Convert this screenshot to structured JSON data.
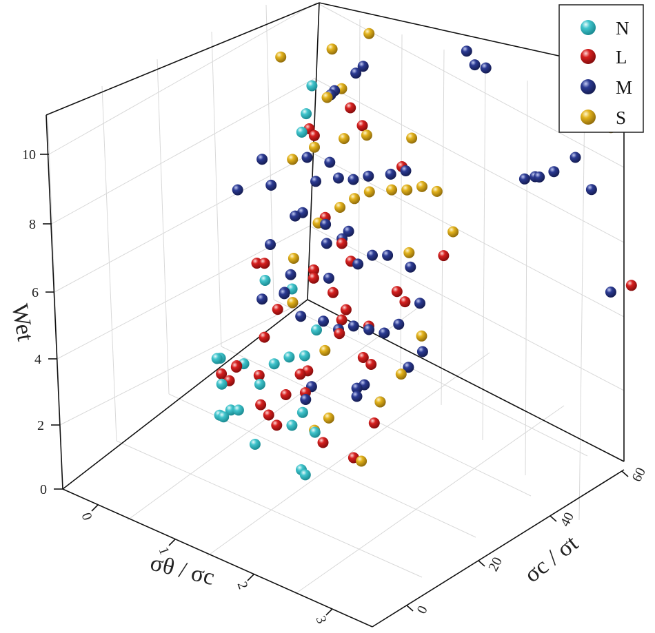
{
  "chart_data": {
    "type": "scatter3d",
    "title": "",
    "xlabel": "σθ / σc",
    "ylabel": "σc / σt",
    "zlabel": "Wet",
    "xlim": [
      -0.5,
      3.5
    ],
    "ylim": [
      -10,
      60
    ],
    "zlim": [
      0,
      11
    ],
    "xticks": [
      "0",
      "1",
      "2",
      "3"
    ],
    "yticks": [
      "0",
      "20",
      "40",
      "60"
    ],
    "zticks": [
      "0",
      "2",
      "4",
      "6",
      "8",
      "10"
    ],
    "xtick_values": [
      0,
      1,
      2,
      3
    ],
    "ytick_values": [
      0,
      20,
      40,
      60
    ],
    "ztick_values": [
      0,
      2,
      4,
      6,
      8,
      10
    ],
    "legend": [
      "N",
      "L",
      "M",
      "S"
    ],
    "legend_position": "top-right",
    "series": [
      {
        "name": "N",
        "color": "#40c4cc",
        "points": [
          [
            0.75,
            8,
            2
          ],
          [
            0.8,
            8,
            2
          ],
          [
            0.9,
            8,
            2.3
          ],
          [
            1.0,
            8,
            2.4
          ],
          [
            1.2,
            8,
            1.6
          ],
          [
            1.7,
            10,
            1.2
          ],
          [
            1.75,
            10,
            1.1
          ],
          [
            0.7,
            10,
            2.7
          ],
          [
            0.6,
            12,
            3.2
          ],
          [
            0.65,
            10,
            3.4
          ],
          [
            1.0,
            10,
            3.6
          ],
          [
            1.2,
            10,
            3.2
          ],
          [
            1.6,
            10,
            2.4
          ],
          [
            1.7,
            11,
            2.8
          ],
          [
            1.4,
            10,
            4.0
          ],
          [
            1.6,
            10,
            4.4
          ],
          [
            1.9,
            8,
            4.9
          ],
          [
            0.85,
            20,
            5.1
          ],
          [
            1.2,
            20,
            5.2
          ],
          [
            0.7,
            35,
            8.1
          ],
          [
            1.1,
            28,
            9.6
          ],
          [
            1.0,
            32,
            10.0
          ],
          [
            1.5,
            20,
            4.3
          ],
          [
            1.9,
            10,
            2.5
          ]
        ]
      },
      {
        "name": "L",
        "color": "#d6201f",
        "points": [
          [
            0.7,
            10,
            3.0
          ],
          [
            0.8,
            10,
            2.9
          ],
          [
            0.9,
            10,
            3.4
          ],
          [
            1.0,
            8,
            3.7
          ],
          [
            1.1,
            12,
            3.2
          ],
          [
            1.2,
            10,
            2.6
          ],
          [
            1.3,
            10,
            2.4
          ],
          [
            1.3,
            15,
            2.6
          ],
          [
            1.4,
            10,
            2.2
          ],
          [
            1.5,
            15,
            3.4
          ],
          [
            1.6,
            15,
            3.6
          ],
          [
            1.7,
            12,
            3.3
          ],
          [
            2.0,
            10,
            2.3
          ],
          [
            2.3,
            12,
            2.0
          ],
          [
            2.4,
            16,
            2.8
          ],
          [
            1.0,
            20,
            4.4
          ],
          [
            1.2,
            20,
            4.8
          ],
          [
            1.3,
            24,
            5.3
          ],
          [
            1.5,
            25,
            5.0
          ],
          [
            1.6,
            25,
            4.3
          ],
          [
            1.8,
            20,
            4.5
          ],
          [
            2.0,
            24,
            4.6
          ],
          [
            2.1,
            20,
            4.1
          ],
          [
            2.2,
            20,
            4.0
          ],
          [
            0.75,
            20,
            5.5
          ],
          [
            0.85,
            20,
            5.6
          ],
          [
            1.2,
            30,
            6.5
          ],
          [
            1.5,
            28,
            6.2
          ],
          [
            1.8,
            24,
            6.3
          ],
          [
            2.3,
            28,
            5.3
          ],
          [
            2.5,
            35,
            6.3
          ],
          [
            0.8,
            35,
            8.3
          ],
          [
            1.1,
            30,
            8.8
          ],
          [
            1.4,
            34,
            9.6
          ],
          [
            1.5,
            35,
            9.1
          ],
          [
            2.0,
            35,
            8.4
          ],
          [
            1.9,
            20,
            5.3
          ],
          [
            1.0,
            16,
            3.9
          ],
          [
            2.2,
            28,
            5.5
          ],
          [
            1.4,
            22,
            5.8
          ],
          [
            3.2,
            72,
            3.2
          ]
        ]
      },
      {
        "name": "M",
        "color": "#2b3a92",
        "points": [
          [
            0.8,
            20,
            4.5
          ],
          [
            1.0,
            22,
            4.7
          ],
          [
            1.1,
            20,
            5.0
          ],
          [
            1.3,
            20,
            4.5
          ],
          [
            1.5,
            22,
            4.4
          ],
          [
            1.6,
            24,
            4.1
          ],
          [
            1.8,
            24,
            4.4
          ],
          [
            2.0,
            24,
            4.5
          ],
          [
            2.2,
            24,
            4.6
          ],
          [
            2.3,
            26,
            4.8
          ],
          [
            0.7,
            25,
            5.6
          ],
          [
            0.9,
            28,
            6.4
          ],
          [
            1.0,
            28,
            6.6
          ],
          [
            1.2,
            30,
            6.3
          ],
          [
            1.3,
            28,
            6.0
          ],
          [
            1.5,
            30,
            6.4
          ],
          [
            1.7,
            28,
            5.8
          ],
          [
            1.8,
            30,
            6.0
          ],
          [
            2.0,
            30,
            6.2
          ],
          [
            0.6,
            28,
            7.0
          ],
          [
            0.9,
            32,
            7.8
          ],
          [
            1.0,
            32,
            7.2
          ],
          [
            1.1,
            34,
            7.7
          ],
          [
            1.3,
            32,
            7.6
          ],
          [
            1.4,
            34,
            7.5
          ],
          [
            1.6,
            34,
            7.8
          ],
          [
            1.8,
            36,
            7.9
          ],
          [
            2.0,
            36,
            8.2
          ],
          [
            0.4,
            30,
            7.4
          ],
          [
            0.3,
            25,
            6.8
          ],
          [
            1.1,
            35,
            9.6
          ],
          [
            1.2,
            34,
            9.9
          ],
          [
            1.4,
            38,
            10.5
          ],
          [
            1.3,
            38,
            10.2
          ],
          [
            2.0,
            20,
            3.1
          ],
          [
            2.1,
            20,
            3.3
          ],
          [
            2.3,
            20,
            3.0
          ],
          [
            1.5,
            18,
            2.8
          ],
          [
            1.9,
            22,
            2.6
          ],
          [
            2.5,
            24,
            3.9
          ],
          [
            2.6,
            26,
            4.3
          ],
          [
            1.7,
            12,
            3.1
          ],
          [
            2.4,
            30,
            5.2
          ],
          [
            2.2,
            32,
            5.9
          ],
          [
            2.8,
            52,
            7.5
          ],
          [
            2.9,
            54,
            7.5
          ],
          [
            3.0,
            56,
            7.6
          ],
          [
            2.75,
            56,
            7.2
          ],
          [
            3.1,
            60,
            7.8
          ],
          [
            3.2,
            62,
            6.8
          ],
          [
            2.2,
            50,
            10.8
          ],
          [
            2.3,
            50,
            10.5
          ],
          [
            2.35,
            52,
            10.3
          ],
          [
            2.9,
            68,
            10.5
          ],
          [
            3.0,
            70,
            10.8
          ],
          [
            3.0,
            70,
            10.4
          ],
          [
            3.4,
            62,
            4.0
          ],
          [
            1.5,
            24,
            5.5
          ],
          [
            1.0,
            24,
            5.1
          ],
          [
            1.6,
            26,
            6.6
          ]
        ]
      },
      {
        "name": "S",
        "color": "#e2b21c",
        "points": [
          [
            2.4,
            12,
            2.0
          ],
          [
            1.9,
            14,
            2.6
          ],
          [
            1.8,
            12,
            2.3
          ],
          [
            2.3,
            20,
            3.0
          ],
          [
            2.4,
            24,
            3.6
          ],
          [
            2.5,
            28,
            4.5
          ],
          [
            1.0,
            25,
            5.5
          ],
          [
            1.2,
            28,
            6.5
          ],
          [
            1.4,
            30,
            7.0
          ],
          [
            1.5,
            32,
            7.2
          ],
          [
            1.7,
            32,
            7.6
          ],
          [
            1.9,
            34,
            7.7
          ],
          [
            2.1,
            34,
            7.9
          ],
          [
            2.3,
            34,
            8.2
          ],
          [
            2.4,
            36,
            8.0
          ],
          [
            0.8,
            30,
            7.8
          ],
          [
            1.0,
            32,
            8.2
          ],
          [
            1.3,
            34,
            8.6
          ],
          [
            1.6,
            34,
            9.0
          ],
          [
            2.0,
            38,
            9.0
          ],
          [
            1.1,
            34,
            9.6
          ],
          [
            1.2,
            36,
            9.8
          ],
          [
            1.0,
            38,
            10.6
          ],
          [
            0.6,
            40,
            13.0
          ],
          [
            0.7,
            40,
            13.0
          ],
          [
            0.9,
            40,
            13.3
          ],
          [
            0.7,
            30,
            10.7
          ],
          [
            1.4,
            40,
            11.3
          ],
          [
            2.0,
            36,
            5.8
          ],
          [
            2.4,
            40,
            6.5
          ],
          [
            3.6,
            75,
            6.8
          ],
          [
            3.3,
            66,
            8.4
          ],
          [
            1.6,
            20,
            3.8
          ],
          [
            1.2,
            20,
            4.8
          ]
        ]
      }
    ]
  }
}
